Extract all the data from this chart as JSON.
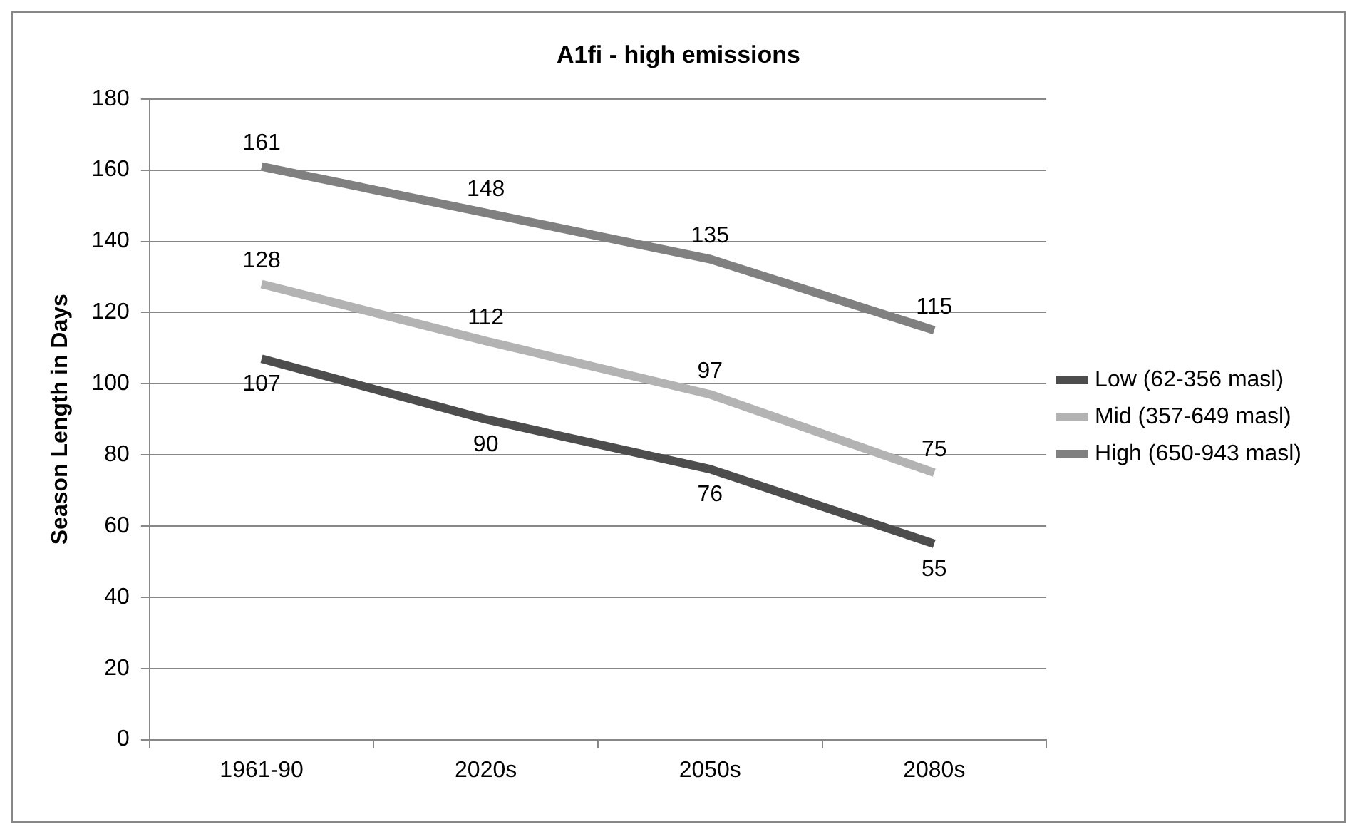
{
  "chart_data": {
    "type": "line",
    "title": "A1fi - high emissions",
    "ylabel": "Season Length in Days",
    "categories": [
      "1961-90",
      "2020s",
      "2050s",
      "2080s"
    ],
    "series": [
      {
        "name": "Low (62-356 masl)",
        "color": "#4d4d4d",
        "values": [
          107,
          90,
          76,
          55
        ]
      },
      {
        "name": "Mid (357-649 masl)",
        "color": "#b3b3b3",
        "values": [
          128,
          112,
          97,
          75
        ]
      },
      {
        "name": "High (650-943 masl)",
        "color": "#808080",
        "values": [
          161,
          148,
          135,
          115
        ]
      }
    ],
    "ylim": [
      0,
      180
    ],
    "yticks": [
      0,
      20,
      40,
      60,
      80,
      100,
      120,
      140,
      160,
      180
    ],
    "grid": "y",
    "legend": "right",
    "marker": "none",
    "line_style": "solid",
    "data_labels": true
  }
}
